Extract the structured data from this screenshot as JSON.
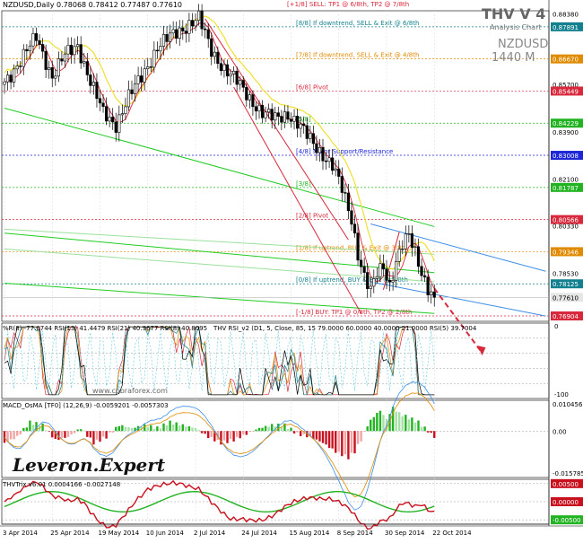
{
  "chart_data": {
    "type": "candlestick",
    "symbol_header": "NZDUSD,Daily  0.78068 0.78412 0.77487 0.77610",
    "watermark": {
      "title": "THV V 4",
      "subtitle": "Analysis Chart",
      "symbol": "NZDUSD",
      "timeframe": "1440 M"
    },
    "x_tick_labels": [
      "3 Apr 2014",
      "25 Apr 2014",
      "19 May 2014",
      "10 Jun 2014",
      "2 Jul 2014",
      "24 Jul 2014",
      "15 Aug 2014",
      "8 Sep 2014",
      "30 Sep 2014",
      "22 Oct 2014"
    ],
    "price_axis": {
      "ylim": [
        0.767,
        0.885
      ],
      "tick_labels": [
        "0.88380",
        "0.87891",
        "0.86670",
        "0.85700",
        "0.85449",
        "0.84229",
        "0.83900",
        "0.83008",
        "0.82100",
        "0.81787",
        "0.80566",
        "0.80330",
        "0.79346",
        "0.78530",
        "0.78125",
        "0.77610",
        "0.76904"
      ],
      "labels": [
        {
          "value": 0.8838,
          "text": "0.88380",
          "color": ""
        },
        {
          "value": 0.87891,
          "text": "0.87891",
          "color": "#13808f"
        },
        {
          "value": 0.8667,
          "text": "0.86670",
          "color": "#e08a00"
        },
        {
          "value": 0.857,
          "text": "0.85700",
          "color": ""
        },
        {
          "value": 0.85449,
          "text": "0.85449",
          "color": "#d8283c"
        },
        {
          "value": 0.84229,
          "text": "0.84229",
          "color": "#21b321"
        },
        {
          "value": 0.839,
          "text": "0.83900",
          "color": ""
        },
        {
          "value": 0.83008,
          "text": "0.83008",
          "color": "#1c26d6"
        },
        {
          "value": 0.821,
          "text": "0.82100",
          "color": ""
        },
        {
          "value": 0.81787,
          "text": "0.81787",
          "color": "#21b321"
        },
        {
          "value": 0.80566,
          "text": "0.80566",
          "color": "#d8283c"
        },
        {
          "value": 0.8033,
          "text": "0.80330",
          "color": ""
        },
        {
          "value": 0.79346,
          "text": "0.79346",
          "color": "#e08a00"
        },
        {
          "value": 0.7853,
          "text": "0.78530",
          "color": ""
        },
        {
          "value": 0.78125,
          "text": "0.78125",
          "color": "#13808f"
        },
        {
          "value": 0.7761,
          "text": "0.77610",
          "color": "#e6e6e6"
        },
        {
          "value": 0.76904,
          "text": "0.76904",
          "color": "#d8283c"
        }
      ]
    },
    "murrey_levels": [
      {
        "value": 0.89111,
        "label": "[+1/8] SELL: TP1 @ 6/8th, TP2 @ 7/8th",
        "color": "#d8283c"
      },
      {
        "value": 0.87891,
        "label": "[8/8] If downtrend, SELL & Exit @ 6/8th",
        "color": "#13808f"
      },
      {
        "value": 0.8667,
        "label": "[7/8] If downtrend, SELL & Exit @ 4/8th",
        "color": "#e08a00"
      },
      {
        "value": 0.85449,
        "label": "[6/8] Pivot",
        "color": "#d8283c"
      },
      {
        "value": 0.84229,
        "label": "[5/8]",
        "color": "#21b321"
      },
      {
        "value": 0.83008,
        "label": "[4/8] Major Support/Resistance",
        "color": "#1c26d6"
      },
      {
        "value": 0.81787,
        "label": "[3/8]",
        "color": "#21b321"
      },
      {
        "value": 0.80566,
        "label": "[2/8] Pivot",
        "color": "#d8283c"
      },
      {
        "value": 0.79346,
        "label": "[1/8] If uptrend, BUY & Exit @ 3/8th",
        "color": "#e08a00"
      },
      {
        "value": 0.78125,
        "label": "[0/8] If uptrend, BUY & Exit @ 2/8th",
        "color": "#13808f"
      },
      {
        "value": 0.76904,
        "label": "[-1/8] BUY: TP1 @ 0/8th, TP2 @ 2/8th",
        "color": "#d8283c"
      }
    ],
    "current_price": 0.7761,
    "price_anchors": [
      {
        "i": 0,
        "c": 0.858
      },
      {
        "i": 5,
        "c": 0.866
      },
      {
        "i": 10,
        "c": 0.875
      },
      {
        "i": 15,
        "c": 0.86
      },
      {
        "i": 19,
        "c": 0.868
      },
      {
        "i": 23,
        "c": 0.872
      },
      {
        "i": 27,
        "c": 0.858
      },
      {
        "i": 31,
        "c": 0.846
      },
      {
        "i": 35,
        "c": 0.842
      },
      {
        "i": 39,
        "c": 0.852
      },
      {
        "i": 43,
        "c": 0.86
      },
      {
        "i": 48,
        "c": 0.871
      },
      {
        "i": 53,
        "c": 0.876
      },
      {
        "i": 58,
        "c": 0.88
      },
      {
        "i": 61,
        "c": 0.882
      },
      {
        "i": 65,
        "c": 0.87
      },
      {
        "i": 69,
        "c": 0.863
      },
      {
        "i": 73,
        "c": 0.858
      },
      {
        "i": 77,
        "c": 0.852
      },
      {
        "i": 81,
        "c": 0.846
      },
      {
        "i": 85,
        "c": 0.844
      },
      {
        "i": 89,
        "c": 0.846
      },
      {
        "i": 92,
        "c": 0.842
      },
      {
        "i": 96,
        "c": 0.836
      },
      {
        "i": 99,
        "c": 0.832
      },
      {
        "i": 103,
        "c": 0.826
      },
      {
        "i": 106,
        "c": 0.817
      },
      {
        "i": 109,
        "c": 0.806
      },
      {
        "i": 111,
        "c": 0.793
      },
      {
        "i": 113,
        "c": 0.784
      },
      {
        "i": 115,
        "c": 0.778
      },
      {
        "i": 117,
        "c": 0.785
      },
      {
        "i": 119,
        "c": 0.788
      },
      {
        "i": 121,
        "c": 0.781
      },
      {
        "i": 123,
        "c": 0.79
      },
      {
        "i": 125,
        "c": 0.796
      },
      {
        "i": 127,
        "c": 0.799
      },
      {
        "i": 129,
        "c": 0.793
      },
      {
        "i": 131,
        "c": 0.786
      },
      {
        "i": 133,
        "c": 0.78
      },
      {
        "i": 135,
        "c": 0.776
      }
    ],
    "trend_lines": [
      {
        "from": [
          0,
          0.848
        ],
        "to": [
          135,
          0.803
        ],
        "color": "#22cc22"
      },
      {
        "from": [
          0,
          0.8005
        ],
        "to": [
          135,
          0.7855
        ],
        "color": "#22cc22"
      },
      {
        "from": [
          0,
          0.7815
        ],
        "to": [
          135,
          0.77
        ],
        "color": "#22cc22"
      },
      {
        "from": [
          0,
          0.802
        ],
        "to": [
          135,
          0.7925
        ],
        "color": "#9be09b"
      },
      {
        "from": [
          0,
          0.7945
        ],
        "to": [
          135,
          0.782
        ],
        "color": "#9be09b"
      },
      {
        "from": [
          115,
          0.804
        ],
        "to": [
          170,
          0.786
        ],
        "color": "#3c8ee8"
      },
      {
        "from": [
          115,
          0.782
        ],
        "to": [
          170,
          0.769
        ],
        "color": "#3c8ee8"
      },
      {
        "from": [
          63,
          0.882
        ],
        "to": [
          108,
          0.798
        ],
        "color": "#d8283c"
      },
      {
        "from": [
          72,
          0.856
        ],
        "to": [
          112,
          0.77
        ],
        "color": "#d8283c"
      },
      {
        "from": [
          119,
          0.779
        ],
        "to": [
          124,
          0.801
        ],
        "color": "#d8283c"
      }
    ],
    "projection": {
      "from": [
        135,
        0.7795
      ],
      "to": [
        150,
        0.755
      ],
      "color": "#d8283c"
    },
    "rsi_panel": {
      "header": "%R(8) -77.0744  RSI(13) 41.4479  RSI(21) 40.9677  RSI(8) 40.8095",
      "header2": "THV RSI_v2  (D1, 5, Close, 85, 15 79.0000 60.0000 40.0000 21.0000  RSI(5) 39.7004",
      "watermark": "www.cobraforex.com",
      "ylim": [
        -100,
        0
      ],
      "tick_labels": [
        "0",
        "-100"
      ]
    },
    "macd_panel": {
      "header": "MACD_OsMA [TF0] (12,26,9) -0.0059201 -0.0057303",
      "ylim": [
        -0.015785,
        0.010456
      ],
      "tick_labels": [
        "0.010456",
        "0.00",
        "-0.015785"
      ],
      "hist_anchors": [
        {
          "i": 0,
          "v": -0.004
        },
        {
          "i": 4,
          "v": -0.002
        },
        {
          "i": 8,
          "v": 0.003
        },
        {
          "i": 12,
          "v": 0.002
        },
        {
          "i": 16,
          "v": -0.003
        },
        {
          "i": 20,
          "v": -0.002
        },
        {
          "i": 24,
          "v": 0.001
        },
        {
          "i": 28,
          "v": -0.004
        },
        {
          "i": 32,
          "v": -0.002
        },
        {
          "i": 36,
          "v": 0.002
        },
        {
          "i": 40,
          "v": 0.001
        },
        {
          "i": 44,
          "v": 0.002
        },
        {
          "i": 48,
          "v": 0.001
        },
        {
          "i": 52,
          "v": 0.003
        },
        {
          "i": 56,
          "v": 0.002
        },
        {
          "i": 60,
          "v": 0.001
        },
        {
          "i": 64,
          "v": -0.002
        },
        {
          "i": 68,
          "v": -0.004
        },
        {
          "i": 72,
          "v": -0.003
        },
        {
          "i": 76,
          "v": -0.001
        },
        {
          "i": 80,
          "v": 0.001
        },
        {
          "i": 84,
          "v": 0.002
        },
        {
          "i": 88,
          "v": 0.002
        },
        {
          "i": 92,
          "v": -0.001
        },
        {
          "i": 96,
          "v": -0.002
        },
        {
          "i": 100,
          "v": -0.004
        },
        {
          "i": 104,
          "v": -0.007
        },
        {
          "i": 108,
          "v": -0.009
        },
        {
          "i": 110,
          "v": -0.007
        },
        {
          "i": 112,
          "v": -0.003
        },
        {
          "i": 114,
          "v": 0.002
        },
        {
          "i": 116,
          "v": 0.005
        },
        {
          "i": 118,
          "v": 0.007
        },
        {
          "i": 120,
          "v": 0.004
        },
        {
          "i": 122,
          "v": 0.008
        },
        {
          "i": 124,
          "v": 0.006
        },
        {
          "i": 126,
          "v": 0.005
        },
        {
          "i": 128,
          "v": 0.004
        },
        {
          "i": 130,
          "v": 0.003
        },
        {
          "i": 132,
          "v": 0.001
        },
        {
          "i": 134,
          "v": -0.001
        },
        {
          "i": 135,
          "v": -0.002
        }
      ]
    },
    "trix_panel": {
      "header": "THVTrix v6.01 0.0004166 -0.0027148",
      "tick_labels": [
        "0.00500",
        "0.00000",
        "-0.00500"
      ]
    }
  },
  "branding": {
    "logo_text": "Leveron.Expert"
  },
  "colors": {
    "bull": "#21b321",
    "bear": "#d8283c",
    "grid": "#d9d9d9",
    "candle": "#000000"
  }
}
